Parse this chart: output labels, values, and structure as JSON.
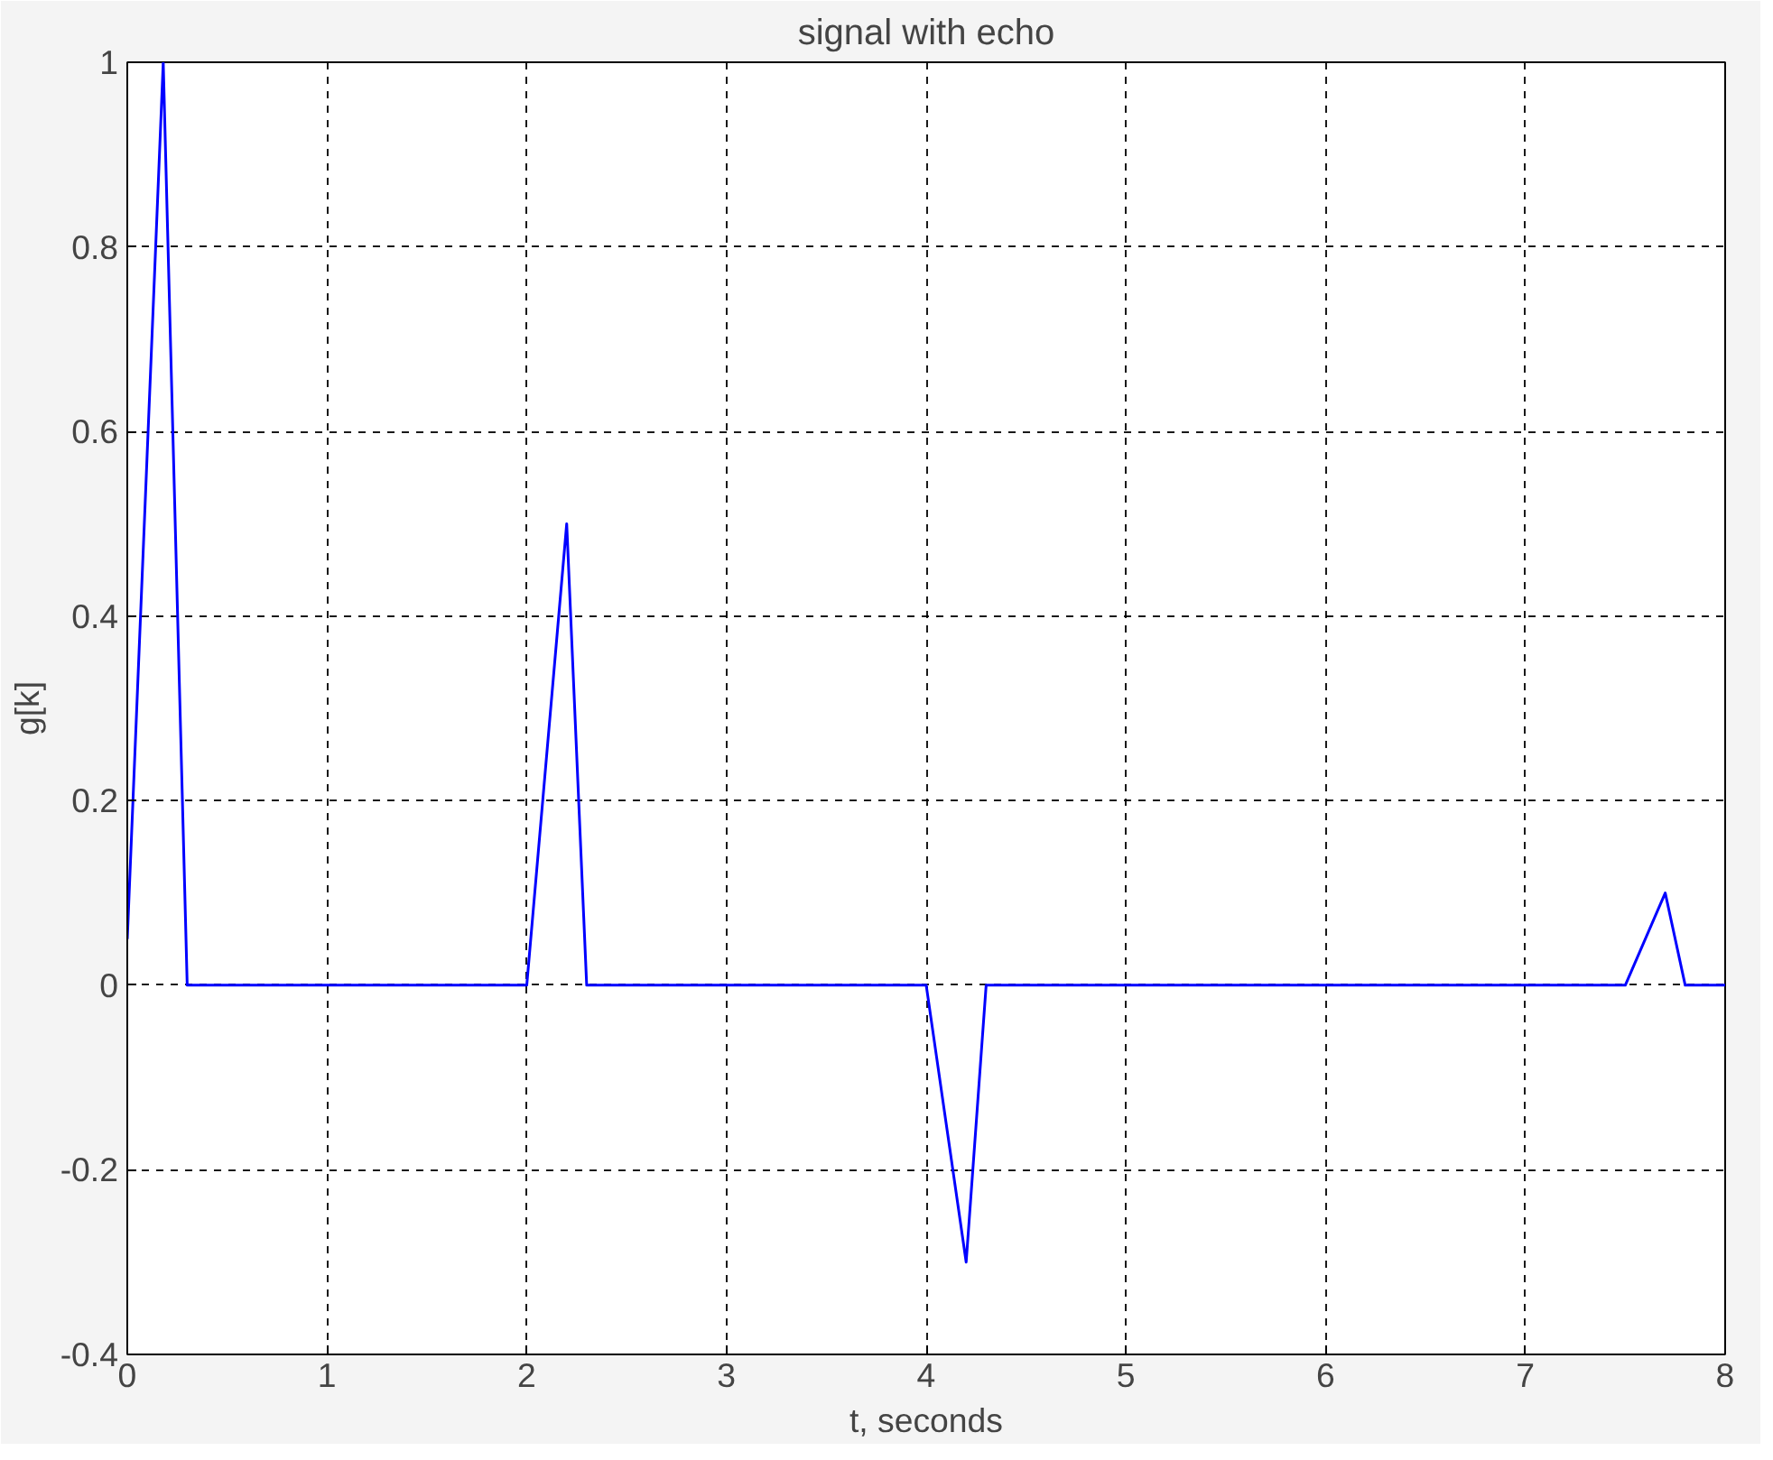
{
  "chart_data": {
    "type": "line",
    "title": "signal with echo",
    "xlabel": "t, seconds",
    "ylabel": "g[k]",
    "x": [
      0,
      0.18,
      0.3,
      2,
      2.2,
      2.3,
      4,
      4.2,
      4.3,
      7.5,
      7.7,
      7.8,
      8
    ],
    "series": [
      {
        "color": "#0000ff",
        "values": [
          0.05,
          1,
          0,
          0,
          0.5,
          0,
          0,
          -0.3,
          0,
          0,
          0.1,
          0,
          0
        ]
      }
    ],
    "xlim": [
      0,
      8
    ],
    "ylim": [
      -0.4,
      1
    ],
    "xticks": [
      0,
      1,
      2,
      3,
      4,
      5,
      6,
      7,
      8
    ],
    "yticks": [
      -0.4,
      -0.2,
      0,
      0.2,
      0.4,
      0.6,
      0.8,
      1
    ],
    "grid": true,
    "line_style": "solid",
    "marker": "none"
  }
}
